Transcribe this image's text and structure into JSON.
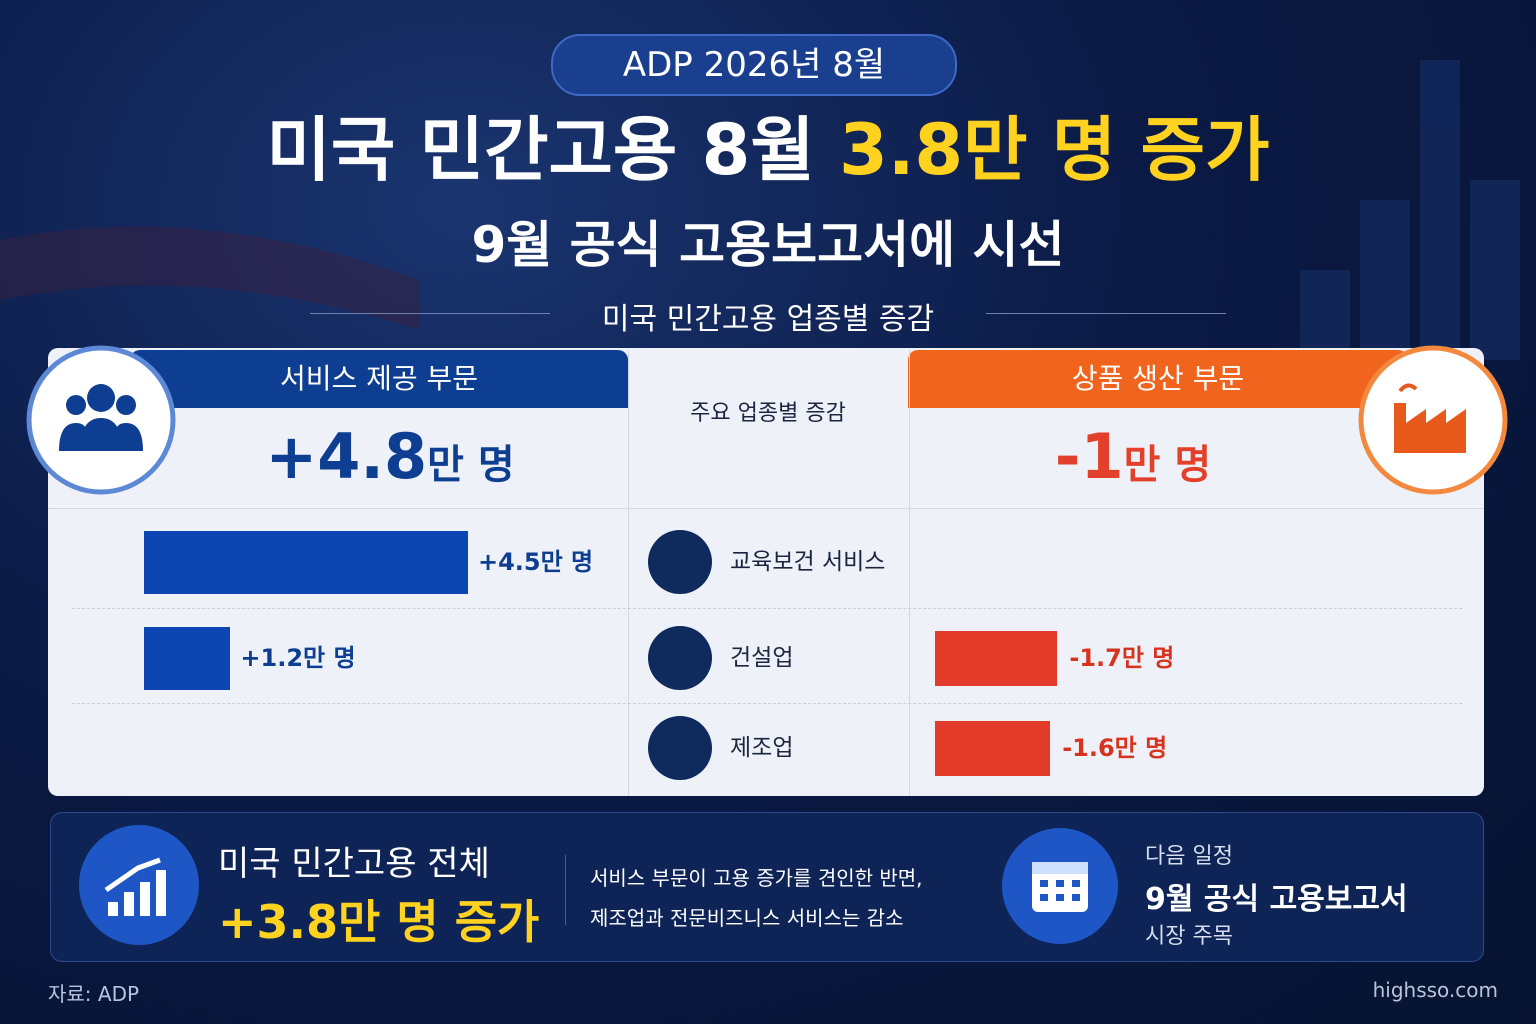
{
  "badge": "ADP 2026년 8월",
  "title": {
    "main": "미국 민간고용 8월",
    "highlight": "3.8만 명 증가"
  },
  "subtitle": "9월 공식 고용보고서에 시선",
  "section_title": "미국 민간고용 업종별 증감",
  "services": {
    "label": "서비스 제공 부문",
    "total": "+4.8",
    "unit": "만 명"
  },
  "center_header": "주요 업종별 증감",
  "goods": {
    "label": "상품 생산 부문",
    "total": "-1",
    "unit": "만 명"
  },
  "rows": [
    {
      "name": "교육보건 서비스",
      "services": {
        "value": 4.5,
        "label": "+4.5만 명"
      }
    },
    {
      "name": "건설업",
      "services": {
        "value": 1.2,
        "label": "+1.2만 명"
      },
      "goods": {
        "value": -1.7,
        "label": "-1.7만 명"
      }
    },
    {
      "name": "제조업",
      "goods": {
        "value": -1.6,
        "label": "-1.6만 명"
      }
    }
  ],
  "summary": {
    "label": "미국 민간고용 전체",
    "value": "+3.8만 명 증가",
    "description": [
      "서비스 부문이 고용 증가를 견인한 반면,",
      "제조업과 전문비즈니스 서비스는 감소"
    ]
  },
  "schedule": {
    "label": "다음 일정",
    "title": "9월 공식 고용보고서",
    "note": "시장 주목"
  },
  "source": "자료: ADP",
  "site": "highsso.com"
}
